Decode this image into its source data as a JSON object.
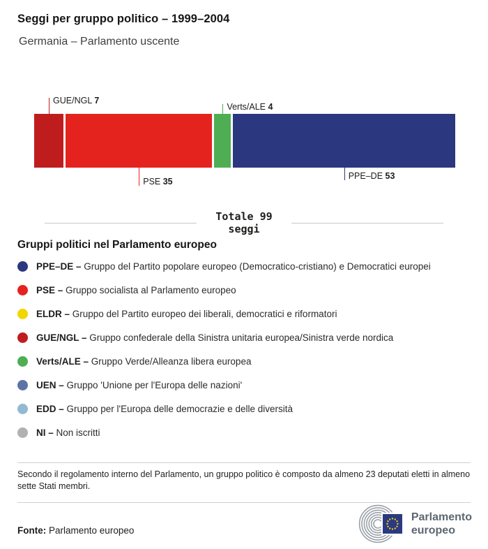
{
  "chart_data": {
    "type": "bar",
    "stacked": true,
    "orientation": "horizontal",
    "title": "Seggi per gruppo politico – 1999–2004",
    "subtitle": "Germania – Parlamento uscente",
    "total": 99,
    "total_label_line1": "Totale 99",
    "total_label_line2": "seggi",
    "categories": [
      "GUE/NGL",
      "PSE",
      "Verts/ALE",
      "PPE–DE"
    ],
    "values": [
      7,
      35,
      4,
      53
    ],
    "series": [
      {
        "name": "GUE/NGL",
        "value": 7,
        "color": "#bf1d1d",
        "callout_side": "above",
        "tick_len": 23
      },
      {
        "name": "PSE",
        "value": 35,
        "color": "#e5231e",
        "callout_side": "below",
        "tick_len": 26
      },
      {
        "name": "Verts/ALE",
        "value": 4,
        "color": "#4fae54",
        "callout_side": "above",
        "tick_len": 14
      },
      {
        "name": "PPE–DE",
        "value": 53,
        "color": "#2b377e",
        "callout_side": "below",
        "tick_len": 18
      }
    ]
  },
  "legend": {
    "heading": "Gruppi politici nel Parlamento europeo",
    "separator": "– ",
    "items": [
      {
        "name": "PPE–DE",
        "color": "#2b377e",
        "desc": "Gruppo del Partito popolare europeo (Democratico-cristiano) e Democratici europei"
      },
      {
        "name": "PSE",
        "color": "#e5231e",
        "desc": "Gruppo socialista al Parlamento europeo"
      },
      {
        "name": "ELDR",
        "color": "#f1d600",
        "desc": "Gruppo del Partito europeo dei liberali, democratici e riformatori"
      },
      {
        "name": "GUE/NGL",
        "color": "#bf1d1d",
        "desc": "Gruppo confederale della Sinistra unitaria europea/Sinistra verde nordica"
      },
      {
        "name": "Verts/ALE",
        "color": "#4fae54",
        "desc": "Gruppo Verde/Alleanza libera europea"
      },
      {
        "name": "UEN",
        "color": "#5c74a5",
        "desc": "Gruppo 'Unione per l'Europa delle nazioni'"
      },
      {
        "name": "EDD",
        "color": "#92bad2",
        "desc": "Gruppo per l'Europa delle democrazie e delle diversità"
      },
      {
        "name": "NI",
        "color": "#b1b1b1",
        "desc": "Non iscritti"
      }
    ]
  },
  "footer": {
    "note": "Secondo il regolamento interno del Parlamento, un gruppo politico è composto da almeno 23 deputati eletti in almeno sette Stati membri.",
    "source_label": "Fonte:",
    "source_text": "Parlamento europeo",
    "logo_line1": "Parlamento",
    "logo_line2": "europeo",
    "logo_blue": "#2b3a80",
    "logo_star_yellow": "#ffd617",
    "logo_gray": "#9aa1a8"
  }
}
